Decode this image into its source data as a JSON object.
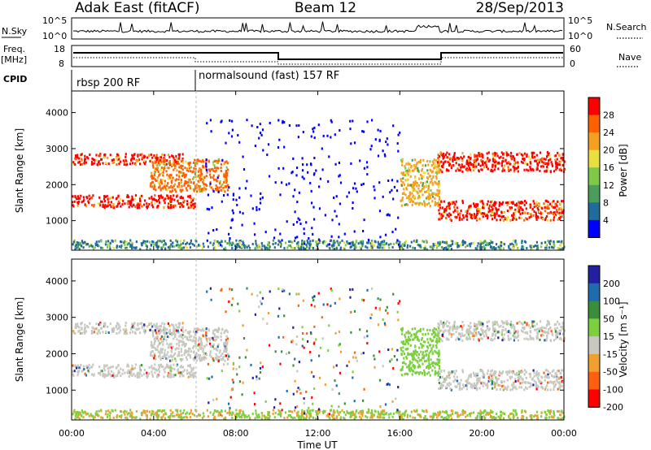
{
  "header": {
    "station": "Adak East (fitACF)",
    "beam": "Beam 12",
    "date": "28/Sep/2013"
  },
  "top_panels": {
    "nsky_label": "N.Sky",
    "nsearch_label": "N.Search",
    "nsky_tick_hi": "10^5",
    "nsky_tick_lo": "10^0",
    "freq_label_1": "Freq.",
    "freq_label_2": "[MHz]",
    "freq_tick_hi": "18",
    "freq_tick_lo": "8",
    "nave_label": "Nave",
    "nave_tick_hi": "60",
    "nave_tick_lo": "0",
    "cpid_label": "CPID",
    "cpid_1": "rbsp 200 RF",
    "cpid_2": "normalsound (fast) 157 RF"
  },
  "colors": {
    "power": [
      "#0000ff",
      "#1f6b9a",
      "#4a9e5a",
      "#7fc84a",
      "#e8e040",
      "#f5a020",
      "#ff6000",
      "#ff0000"
    ],
    "velocity": [
      "#2020a0",
      "#1e6bb0",
      "#3a8e3a",
      "#7cd040",
      "#c8c8c0",
      "#f0a030",
      "#ff6010",
      "#ff0000"
    ]
  },
  "chart_data": [
    {
      "type": "heatmap",
      "ylabel": "Slant Range [km]",
      "ylim": [
        180,
        4600
      ],
      "yticks": [
        "1000",
        "2000",
        "3000",
        "4000"
      ],
      "xlim": [
        "00:00",
        "24:00"
      ],
      "colorbar_label": "Power [dB]",
      "colorbar_ticks": [
        "4",
        "8",
        "12",
        "16",
        "20",
        "24",
        "28"
      ],
      "scatter_regions": [
        {
          "t0": 0.0,
          "t1": 5.4,
          "r0": 2550,
          "r1": 2850,
          "level": 7
        },
        {
          "t0": 0.0,
          "t1": 6.0,
          "r0": 1350,
          "r1": 1700,
          "level": 7
        },
        {
          "t0": 3.8,
          "t1": 7.6,
          "r0": 1800,
          "r1": 2700,
          "level": 6
        },
        {
          "t0": 17.8,
          "t1": 24.0,
          "r0": 2350,
          "r1": 2900,
          "level": 7
        },
        {
          "t0": 17.8,
          "t1": 24.0,
          "r0": 1000,
          "r1": 1550,
          "level": 7
        },
        {
          "t0": 16.0,
          "t1": 17.9,
          "r0": 1400,
          "r1": 2700,
          "level": 5
        }
      ]
    },
    {
      "type": "heatmap",
      "ylabel": "Slant Range [km]",
      "ylim": [
        180,
        4600
      ],
      "yticks": [
        "1000",
        "2000",
        "3000",
        "4000"
      ],
      "xlabel": "Time UT",
      "xticks": [
        "00:00",
        "04:00",
        "08:00",
        "12:00",
        "16:00",
        "20:00",
        "00:00"
      ],
      "colorbar_label": "Velocity [m s⁻¹]",
      "colorbar_ticks": [
        "200",
        "100",
        "50",
        "15",
        "-15",
        "-50",
        "-100",
        "-200"
      ]
    }
  ]
}
